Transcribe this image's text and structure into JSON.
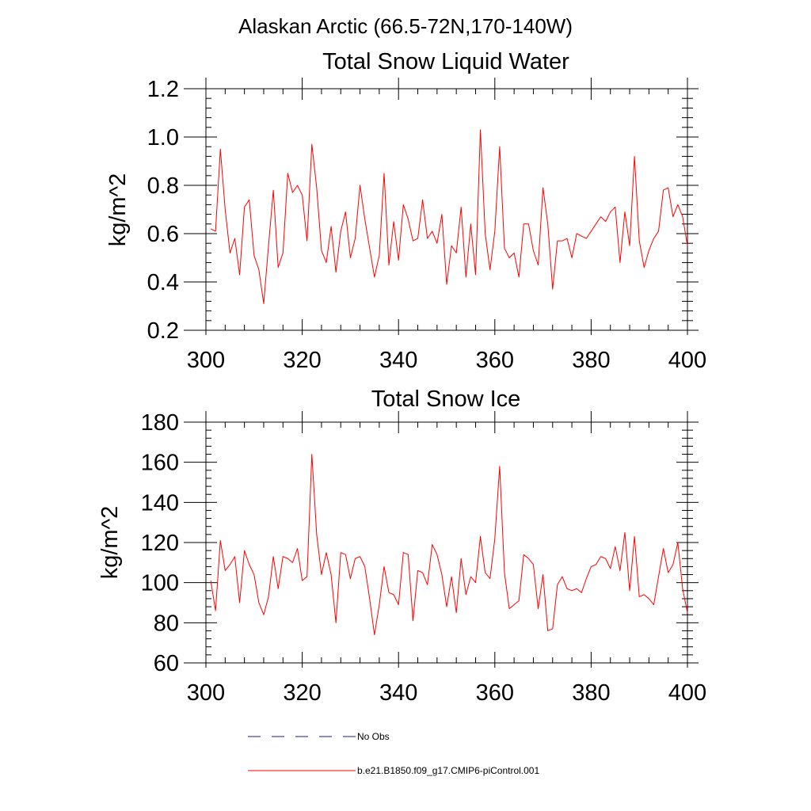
{
  "suptitle": "Alaskan Arctic (66.5-72N,170-140W)",
  "colors": {
    "model": "#ff0000",
    "obs": "#1a1a8c",
    "axis": "#000000"
  },
  "legend": {
    "placement": "bottom",
    "items": [
      {
        "label": "No Obs",
        "style": "dashed",
        "color": "#1a1a8c"
      },
      {
        "label": "b.e21.B1850.f09_g17.CMIP6-piControl.001",
        "style": "solid",
        "color": "#ff0000"
      }
    ]
  },
  "chart_data": [
    {
      "type": "line",
      "title": "Total Snow Liquid Water",
      "ylabel": "kg/m^2",
      "xlim": [
        300,
        400
      ],
      "ylim": [
        0.2,
        1.2
      ],
      "xticks": [
        300,
        320,
        340,
        360,
        380,
        400
      ],
      "yticks": [
        0.2,
        0.4,
        0.6,
        0.8,
        1.0,
        1.2
      ],
      "ytick_labels": [
        "0.2",
        "0.4",
        "0.6",
        "0.8",
        "1.0",
        "1.2"
      ],
      "series": [
        {
          "name": "b.e21.B1850.f09_g17.CMIP6-piControl.001",
          "x_start": 301,
          "x_step": 1,
          "values": [
            0.62,
            0.61,
            0.95,
            0.7,
            0.52,
            0.58,
            0.43,
            0.71,
            0.74,
            0.51,
            0.45,
            0.31,
            0.55,
            0.78,
            0.46,
            0.52,
            0.85,
            0.77,
            0.8,
            0.76,
            0.57,
            0.97,
            0.79,
            0.53,
            0.48,
            0.63,
            0.44,
            0.61,
            0.69,
            0.5,
            0.58,
            0.8,
            0.66,
            0.54,
            0.42,
            0.51,
            0.85,
            0.47,
            0.65,
            0.49,
            0.72,
            0.66,
            0.57,
            0.58,
            0.74,
            0.58,
            0.61,
            0.56,
            0.68,
            0.39,
            0.55,
            0.52,
            0.71,
            0.42,
            0.64,
            0.43,
            1.03,
            0.6,
            0.45,
            0.61,
            0.96,
            0.54,
            0.5,
            0.52,
            0.42,
            0.64,
            0.64,
            0.53,
            0.47,
            0.79,
            0.64,
            0.37,
            0.57,
            0.57,
            0.58,
            0.5,
            0.6,
            0.59,
            0.58,
            0.61,
            0.64,
            0.67,
            0.65,
            0.69,
            0.71,
            0.48,
            0.69,
            0.55,
            0.92,
            0.57,
            0.46,
            0.53,
            0.58,
            0.61,
            0.78,
            0.79,
            0.67,
            0.72,
            0.67,
            0.55
          ]
        }
      ]
    },
    {
      "type": "line",
      "title": "Total Snow Ice",
      "ylabel": "kg/m^2",
      "xlim": [
        300,
        400
      ],
      "ylim": [
        60,
        180
      ],
      "xticks": [
        300,
        320,
        340,
        360,
        380,
        400
      ],
      "yticks": [
        60,
        80,
        100,
        120,
        140,
        160,
        180
      ],
      "ytick_labels": [
        "60",
        "80",
        "100",
        "120",
        "140",
        "160",
        "180"
      ],
      "series": [
        {
          "name": "b.e21.B1850.f09_g17.CMIP6-piControl.001",
          "x_start": 301,
          "x_step": 1,
          "values": [
            101,
            86,
            121,
            106,
            109,
            113,
            90,
            116,
            109,
            104,
            90,
            84,
            93,
            113,
            97,
            113,
            112,
            110,
            117,
            101,
            103,
            164,
            124,
            104,
            115,
            104,
            80,
            115,
            114,
            102,
            112,
            113,
            108,
            92,
            74,
            89,
            108,
            95,
            94,
            89,
            115,
            114,
            81,
            106,
            105,
            99,
            119,
            114,
            104,
            88,
            103,
            85,
            112,
            94,
            103,
            100,
            123,
            105,
            102,
            122,
            158,
            105,
            87,
            89,
            91,
            114,
            112,
            109,
            87,
            104,
            76,
            77,
            99,
            103,
            97,
            96,
            97,
            95,
            102,
            108,
            109,
            113,
            112,
            107,
            118,
            106,
            125,
            96,
            123,
            93,
            94,
            92,
            89,
            103,
            117,
            105,
            109,
            120,
            97,
            85
          ]
        }
      ]
    }
  ]
}
